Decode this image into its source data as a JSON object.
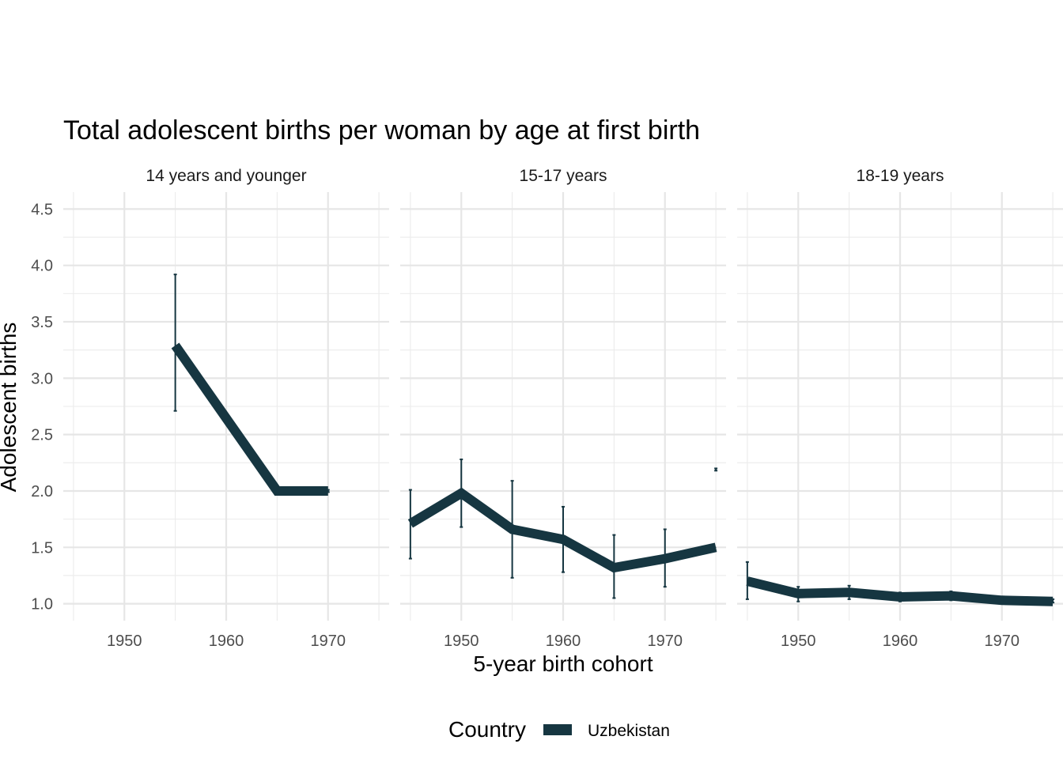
{
  "chart_data": {
    "type": "line",
    "title": "Total adolescent births per woman by age at first birth",
    "xlabel": "5-year birth cohort",
    "ylabel": "Adolescent births",
    "xlim": [
      1944,
      1976
    ],
    "ylim": [
      0.85,
      4.65
    ],
    "y_ticks": [
      1.0,
      1.5,
      2.0,
      2.5,
      3.0,
      3.5,
      4.0,
      4.5
    ],
    "x_ticks": [
      1950,
      1960,
      1970
    ],
    "grid": true,
    "legend": {
      "title": "Country",
      "placement": "bottom",
      "entries": [
        "Uzbekistan"
      ]
    },
    "color": "#163641",
    "panels": [
      {
        "label": "14 years and younger",
        "series": [
          {
            "name": "Uzbekistan",
            "points": [
              {
                "x": 1955,
                "y": 3.29,
                "lo": 2.71,
                "hi": 3.92
              },
              {
                "x": 1965,
                "y": 2.0
              },
              {
                "x": 1970,
                "y": 2.0,
                "lo": 1.99,
                "hi": 2.01
              }
            ]
          }
        ]
      },
      {
        "label": "15-17 years",
        "series": [
          {
            "name": "Uzbekistan",
            "points": [
              {
                "x": 1945,
                "y": 1.71,
                "lo": 1.4,
                "hi": 2.01
              },
              {
                "x": 1950,
                "y": 1.98,
                "lo": 1.68,
                "hi": 2.28
              },
              {
                "x": 1955,
                "y": 1.66,
                "lo": 1.23,
                "hi": 2.09
              },
              {
                "x": 1960,
                "y": 1.57,
                "lo": 1.28,
                "hi": 1.86
              },
              {
                "x": 1965,
                "y": 1.32,
                "lo": 1.05,
                "hi": 1.61
              },
              {
                "x": 1970,
                "y": 1.4,
                "lo": 1.15,
                "hi": 1.66
              },
              {
                "x": 1975,
                "y": 1.5,
                "lo": 2.18,
                "hi": 2.2
              }
            ]
          }
        ]
      },
      {
        "label": "18-19 years",
        "series": [
          {
            "name": "Uzbekistan",
            "points": [
              {
                "x": 1945,
                "y": 1.2,
                "lo": 1.04,
                "hi": 1.37
              },
              {
                "x": 1950,
                "y": 1.09,
                "lo": 1.02,
                "hi": 1.15
              },
              {
                "x": 1955,
                "y": 1.1,
                "lo": 1.04,
                "hi": 1.16
              },
              {
                "x": 1960,
                "y": 1.06,
                "lo": 1.02,
                "hi": 1.1
              },
              {
                "x": 1965,
                "y": 1.07,
                "lo": 1.03,
                "hi": 1.11
              },
              {
                "x": 1970,
                "y": 1.03,
                "lo": 1.02,
                "hi": 1.04
              },
              {
                "x": 1975,
                "y": 1.02,
                "lo": 1.01,
                "hi": 1.04
              }
            ]
          }
        ]
      }
    ]
  }
}
